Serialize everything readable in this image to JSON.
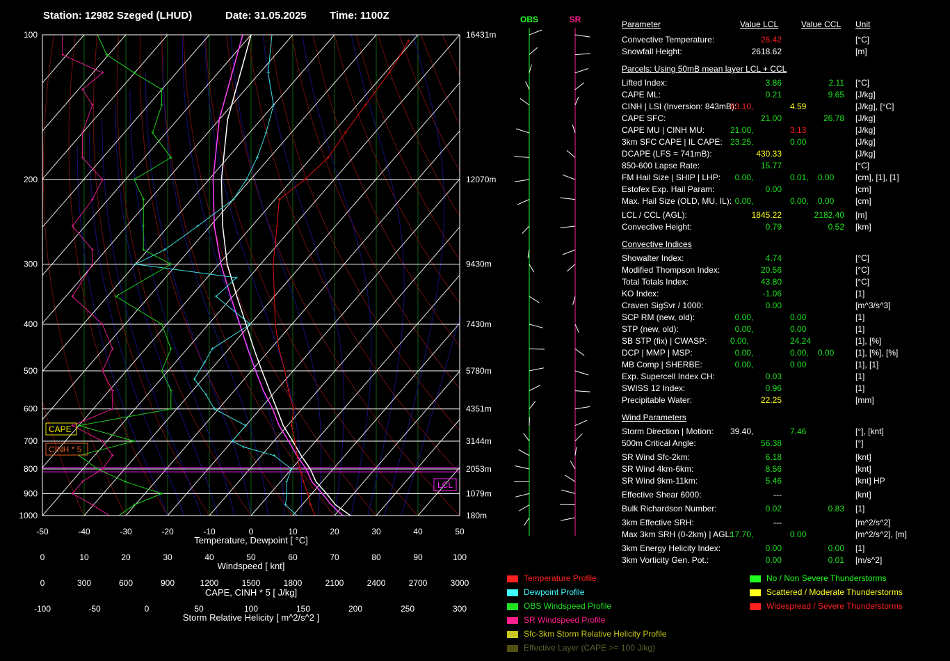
{
  "header": {
    "station": "Station: 12982 Szeged (LHUD)",
    "date": "Date: 31.05.2025",
    "time": "Time: 1100Z"
  },
  "chart_data": {
    "type": "skew-t",
    "xlabel": "Temperature, Dewpoint  [ °C]",
    "x_ticks": [
      "-50",
      "-40",
      "-30",
      "-20",
      "-10",
      "0",
      "10",
      "20",
      "30",
      "40",
      "50"
    ],
    "pressure_ticks": [
      {
        "p": 100,
        "label": "100",
        "height": "16431m"
      },
      {
        "p": 200,
        "label": "200",
        "height": "12070m"
      },
      {
        "p": 300,
        "label": "300",
        "height": "9430m"
      },
      {
        "p": 400,
        "label": "400",
        "height": "7430m"
      },
      {
        "p": 500,
        "label": "500",
        "height": "5780m"
      },
      {
        "p": 600,
        "label": "600",
        "height": "4351m"
      },
      {
        "p": 700,
        "label": "700",
        "height": "3144m"
      },
      {
        "p": 800,
        "label": "800",
        "height": "2053m"
      },
      {
        "p": 900,
        "label": "900",
        "height": "1079m"
      },
      {
        "p": 1000,
        "label": "1000",
        "height": "180m"
      }
    ],
    "temperature": [
      [
        1010,
        16
      ],
      [
        950,
        12
      ],
      [
        900,
        9
      ],
      [
        850,
        5.5
      ],
      [
        800,
        2
      ],
      [
        750,
        -1.5
      ],
      [
        700,
        -5
      ],
      [
        650,
        -9
      ],
      [
        600,
        -12
      ],
      [
        550,
        -17
      ],
      [
        500,
        -22
      ],
      [
        450,
        -28
      ],
      [
        400,
        -34
      ],
      [
        350,
        -40
      ],
      [
        300,
        -47
      ],
      [
        270,
        -51
      ],
      [
        250,
        -54
      ],
      [
        220,
        -59
      ],
      [
        200,
        -57
      ],
      [
        180,
        -56
      ],
      [
        160,
        -57
      ],
      [
        140,
        -58
      ],
      [
        120,
        -59
      ],
      [
        110,
        -60
      ],
      [
        103,
        -61
      ]
    ],
    "dewpoint": [
      [
        1010,
        12
      ],
      [
        950,
        6
      ],
      [
        900,
        4
      ],
      [
        850,
        1.5
      ],
      [
        800,
        0
      ],
      [
        750,
        -7
      ],
      [
        720,
        -16
      ],
      [
        700,
        -20
      ],
      [
        650,
        -20
      ],
      [
        600,
        -31
      ],
      [
        560,
        -36
      ],
      [
        520,
        -42
      ],
      [
        480,
        -43
      ],
      [
        450,
        -44
      ],
      [
        400,
        -40
      ],
      [
        350,
        -54
      ],
      [
        320,
        -53
      ],
      [
        300,
        -80
      ],
      [
        280,
        -76
      ],
      [
        250,
        -73
      ],
      [
        220,
        -70
      ],
      [
        200,
        -71
      ],
      [
        180,
        -73
      ],
      [
        160,
        -76
      ],
      [
        140,
        -80
      ],
      [
        120,
        -88
      ],
      [
        100,
        -95
      ]
    ],
    "parcel": [
      [
        1010,
        25
      ],
      [
        950,
        18
      ],
      [
        900,
        13.5
      ],
      [
        850,
        8.5
      ],
      [
        800,
        4.5
      ],
      [
        750,
        -0.5
      ],
      [
        700,
        -5.5
      ],
      [
        650,
        -11
      ],
      [
        600,
        -16
      ],
      [
        550,
        -21.5
      ],
      [
        500,
        -27.5
      ],
      [
        450,
        -34
      ],
      [
        400,
        -41
      ],
      [
        350,
        -49
      ],
      [
        300,
        -58
      ],
      [
        250,
        -67
      ],
      [
        200,
        -77
      ],
      [
        150,
        -88
      ],
      [
        100,
        -100
      ]
    ],
    "parcel2": [
      [
        1010,
        23
      ],
      [
        950,
        17
      ],
      [
        900,
        12.5
      ],
      [
        850,
        7.5
      ],
      [
        800,
        3.5
      ],
      [
        750,
        -1.5
      ],
      [
        700,
        -6.5
      ],
      [
        650,
        -12
      ],
      [
        600,
        -17
      ],
      [
        550,
        -23
      ],
      [
        500,
        -29
      ],
      [
        450,
        -35.5
      ],
      [
        400,
        -42.5
      ],
      [
        350,
        -50.5
      ],
      [
        300,
        -59.5
      ],
      [
        250,
        -69
      ],
      [
        200,
        -79
      ],
      [
        150,
        -90
      ],
      [
        100,
        -102
      ]
    ],
    "lcl_label": "LCL",
    "lcl_p": 803,
    "cape_label": "CAPE",
    "cinh_label": "CINH * 5",
    "wind_scale": {
      "label": "Windspeed  [ knt]",
      "ticks": [
        "0",
        "10",
        "20",
        "30",
        "40",
        "50",
        "60",
        "70",
        "80",
        "90",
        "100"
      ]
    },
    "cape_scale": {
      "label": "CAPE, CINH * 5  [ J/kg]",
      "ticks": [
        "0",
        "300",
        "600",
        "900",
        "1200",
        "1500",
        "1800",
        "2100",
        "2400",
        "2700",
        "3000"
      ]
    },
    "srh_scale": {
      "label": "Storm Relative Helicity  [ m^2/s^2 ]",
      "ticks": [
        "-100",
        "-50",
        "0",
        "50",
        "100",
        "150",
        "200",
        "250",
        "300"
      ]
    },
    "obs_wind": [
      [
        1010,
        8
      ],
      [
        950,
        10
      ],
      [
        900,
        13
      ],
      [
        850,
        9
      ],
      [
        800,
        6
      ],
      [
        750,
        4
      ],
      [
        700,
        10
      ],
      [
        650,
        4
      ],
      [
        600,
        14
      ],
      [
        550,
        14
      ],
      [
        500,
        13
      ],
      [
        450,
        14
      ],
      [
        400,
        13
      ],
      [
        350,
        8
      ],
      [
        300,
        14
      ],
      [
        280,
        11
      ],
      [
        250,
        11
      ],
      [
        220,
        11
      ],
      [
        200,
        10
      ],
      [
        180,
        14
      ],
      [
        160,
        12
      ],
      [
        140,
        13
      ],
      [
        130,
        13
      ],
      [
        120,
        10
      ],
      [
        110,
        7
      ],
      [
        100,
        6
      ]
    ],
    "sr_wind": [
      [
        1010,
        7
      ],
      [
        950,
        5
      ],
      [
        900,
        3
      ],
      [
        850,
        4
      ],
      [
        800,
        6
      ],
      [
        750,
        7
      ],
      [
        700,
        6
      ],
      [
        650,
        3
      ],
      [
        600,
        7
      ],
      [
        550,
        7
      ],
      [
        500,
        6
      ],
      [
        450,
        7
      ],
      [
        400,
        6
      ],
      [
        350,
        3
      ],
      [
        300,
        5
      ],
      [
        280,
        5
      ],
      [
        250,
        3
      ],
      [
        220,
        5
      ],
      [
        200,
        6
      ],
      [
        180,
        4
      ],
      [
        160,
        4
      ],
      [
        140,
        5
      ],
      [
        130,
        4
      ],
      [
        120,
        6
      ],
      [
        110,
        2
      ],
      [
        100,
        2
      ]
    ],
    "column_labels": {
      "obs": "OBS",
      "sr": "SR"
    }
  },
  "table": {
    "headers": {
      "param": "Parameter",
      "lcl": "Value LCL",
      "ccl": "Value CCL",
      "unit": "Unit"
    },
    "section_parcels": "Parcels: Using 50mB mean layer LCL + CCL",
    "section_convective": "Convective Indices",
    "section_wind": "Wind Parameters",
    "colors": {
      "white": "#ffffff",
      "red": "#ff2020",
      "green": "#20e020",
      "yellow": "#ffff20"
    },
    "rows": [
      {
        "y": 57,
        "label": "Convective Temperature:",
        "v1": "26.42",
        "c1": "red",
        "unit": "[°C]"
      },
      {
        "y": 74,
        "label": "Snowfall Height:",
        "v1": "2618.62",
        "c1": "white",
        "unit": "[m]"
      },
      {
        "y": 119,
        "label": "Lifted Index:",
        "v1": "3.86",
        "c1": "green",
        "v2": "2.11",
        "c2": "green",
        "unit": "[°C]"
      },
      {
        "y": 136,
        "label": "CAPE ML:",
        "v1": "0.21",
        "c1": "green",
        "v2": "9.65",
        "c2": "green",
        "unit": "[J/kg]"
      },
      {
        "y": 153,
        "label": "CINH | LSI (Inversion: 843mB):",
        "v1": "63.10",
        "c1": "red",
        "v1b": "4.59",
        "c1b": "yellow",
        "unit": "[J/kg], [°C]"
      },
      {
        "y": 170,
        "label": "CAPE SFC:",
        "v1": "21.00",
        "c1": "green",
        "v2": "26.78",
        "c2": "green",
        "unit": "[J/kg]"
      },
      {
        "y": 187,
        "label": "CAPE MU | CINH MU:",
        "v1": "21.00",
        "c1": "green",
        "v1b": "3.13",
        "c1b": "red",
        "unit": "[J/kg]"
      },
      {
        "y": 204,
        "label": "3km SFC CAPE | IL CAPE:",
        "v1": "23.25",
        "c1": "green",
        "v1b": "0.00",
        "c1b": "green",
        "unit": "[J/kg]"
      },
      {
        "y": 221,
        "label": "DCAPE (LFS = 741mB):",
        "v1": "430.33",
        "c1": "yellow",
        "unit": "[J/kg]"
      },
      {
        "y": 238,
        "label": "850-600 Lapse Rate:",
        "v1": "15.77",
        "c1": "green",
        "unit": "[°C]"
      },
      {
        "y": 255,
        "label": "FM Hail Size | SHIP | LHP:",
        "v1": "0.00",
        "c1": "green",
        "v1b": "0.01",
        "c1b": "green",
        "v1c": "0.00",
        "c1c": "green",
        "unit": "[cm], [1], [1]"
      },
      {
        "y": 272,
        "label": "Estofex Exp. Hail Param:",
        "v1": "0.00",
        "c1": "green",
        "unit": "[cm]"
      },
      {
        "y": 289,
        "label": "Max. Hail Size (OLD, MU, IL):",
        "v1": "0.00",
        "c1": "green",
        "v1b": "0.00",
        "c1b": "green",
        "v1c": "0.00",
        "c1c": "green",
        "unit": "[cm]"
      },
      {
        "y": 309,
        "label": "LCL / CCL (AGL):",
        "v1": "1845.22",
        "c1": "yellow",
        "v2": "2182.40",
        "c2": "green",
        "unit": "[m]"
      },
      {
        "y": 326,
        "label": "Convective Height:",
        "v1": "0.79",
        "c1": "green",
        "v2": "0.52",
        "c2": "green",
        "unit": "[km]"
      },
      {
        "y": 371,
        "label": "Showalter Index:",
        "v1": "4.74",
        "c1": "green",
        "unit": "[°C]"
      },
      {
        "y": 388,
        "label": "Modified Thompson Index:",
        "v1": "20.56",
        "c1": "green",
        "unit": "[°C]"
      },
      {
        "y": 405,
        "label": "Total Totals Index:",
        "v1": "43.80",
        "c1": "green",
        "unit": "[°C]"
      },
      {
        "y": 422,
        "label": "KO Index:",
        "v1": "-1.06",
        "c1": "green",
        "unit": "[1]"
      },
      {
        "y": 439,
        "label": "Craven SigSvr / 1000:",
        "v1": "0.00",
        "c1": "green",
        "unit": "[m^3/s^3]"
      },
      {
        "y": 456,
        "label": "SCP RM (new, old):",
        "v1": "0.00",
        "c1": "green",
        "v1b": "0.00",
        "c1b": "green",
        "unit": "[1]"
      },
      {
        "y": 473,
        "label": "STP (new, old):",
        "v1": "0.00",
        "c1": "green",
        "v1b": "0.00",
        "c1b": "green",
        "unit": "[1]"
      },
      {
        "y": 490,
        "label": "SB STP (fix) | CWASP:",
        "v1": "0.00",
        "c1": "green",
        "v1b": "24.24",
        "c1b": "green",
        "unit": "[1], [%]"
      },
      {
        "y": 507,
        "label": "DCP | MMP | MSP:",
        "v1": "0.00",
        "c1": "green",
        "v1b": "0.00",
        "c1b": "green",
        "v1c": "0.00",
        "c1c": "green",
        "unit": "[1], [%], [%]"
      },
      {
        "y": 524,
        "label": "MB Comp | SHERBE:",
        "v1": "0.00",
        "c1": "green",
        "v1b": "0.00",
        "c1b": "green",
        "unit": "[1], [1]"
      },
      {
        "y": 541,
        "label": "Exp. Supercell Index CH:",
        "v1": "0.03",
        "c1": "green",
        "unit": "[1]"
      },
      {
        "y": 558,
        "label": "SWISS 12 Index:",
        "v1": "0.96",
        "c1": "green",
        "unit": "[1]"
      },
      {
        "y": 575,
        "label": "Precipitable Water:",
        "v1": "22.25",
        "c1": "yellow",
        "unit": "[mm]"
      },
      {
        "y": 620,
        "label": "Storm Direction | Motion:",
        "v1": "39.40",
        "c1": "white",
        "v1b": "7.46",
        "c1b": "green",
        "unit": "[°], [knt]"
      },
      {
        "y": 637,
        "label": "500m Critical Angle:",
        "v1": "56.38",
        "c1": "green",
        "unit": "[°]"
      },
      {
        "y": 657,
        "label": "SR Wind Sfc-2km:",
        "v1": "6.18",
        "c1": "green",
        "unit": "[knt]"
      },
      {
        "y": 674,
        "label": "SR Wind 4km-6km:",
        "v1": "8.56",
        "c1": "green",
        "unit": "[knt]"
      },
      {
        "y": 691,
        "label": "SR Wind 9km-11km:",
        "v1": "5.46",
        "c1": "green",
        "unit": "[knt] HP"
      },
      {
        "y": 711,
        "label": "Effective Shear 6000:",
        "v1": "---",
        "c1": "white",
        "unit": "[knt]"
      },
      {
        "y": 731,
        "label": "Bulk Richardson Number:",
        "v1": "0.02",
        "c1": "green",
        "v2": "0.83",
        "c2": "green",
        "unit": "[1]"
      },
      {
        "y": 751,
        "label": "3km Effective SRH:",
        "v1": "---",
        "c1": "white",
        "unit": "[m^2/s^2]"
      },
      {
        "y": 768,
        "label": "Max 3km SRH (0-2km) | AGL:",
        "v1": "17.70",
        "c1": "green",
        "v1b": "0.00",
        "c1b": "green",
        "unit": "[m^2/s^2], [m]"
      },
      {
        "y": 788,
        "label": "3km Energy Helicity Index:",
        "v1": "0.00",
        "c1": "green",
        "v2": "0.00",
        "c2": "green",
        "unit": "[1]"
      },
      {
        "y": 805,
        "label": "3km Vorticity Gen. Pot.:",
        "v1": "0.00",
        "c1": "green",
        "v2": "0.01",
        "c2": "green",
        "unit": "[m/s^2]"
      }
    ]
  },
  "legend": {
    "left": [
      {
        "label": "Temperature Profile",
        "color": "#ff2020",
        "text_color": "#ff2020"
      },
      {
        "label": "Dewpoint Profile",
        "color": "#40ffff",
        "text_color": "#40ffff"
      },
      {
        "label": "OBS Windspeed Profile",
        "color": "#20e020",
        "text_color": "#20e020"
      },
      {
        "label": "SR Windspeed Profile",
        "color": "#ff1f8f",
        "text_color": "#ff1f8f"
      },
      {
        "label": "Sfc-3km Storm Relative Helicity Profile",
        "color": "#c8c820",
        "text_color": "#c8c820"
      },
      {
        "label": "Effective Layer (CAPE >= 100 J/kg)",
        "color": "#505014",
        "text_color": "#606030"
      }
    ],
    "right": [
      {
        "label": "No / Non Severe Thunderstorms",
        "color": "#20ff20",
        "text_color": "#20ff20"
      },
      {
        "label": "Scattered / Moderate Thunderstorms",
        "color": "#ffff20",
        "text_color": "#ffff20"
      },
      {
        "label": "Widespread / Severe Thunderstorms",
        "color": "#ff2020",
        "text_color": "#ff2020"
      }
    ]
  }
}
